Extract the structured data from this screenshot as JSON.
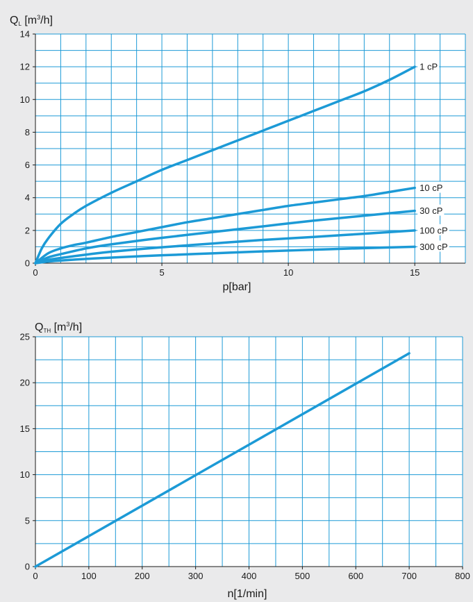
{
  "colors": {
    "line": "#1c9ad6",
    "grid": "#1c9ad6",
    "plot_bg": "#ffffff",
    "page_bg": "#eaeaeb"
  },
  "chart_data": [
    {
      "type": "line",
      "ylabel": {
        "symbol": "Q",
        "subscript": "L",
        "unit_pre": " [m",
        "unit_sup": "3",
        "unit_post": "/h]"
      },
      "xlabel": "p[bar]",
      "xlim": [
        0,
        17
      ],
      "ylim": [
        0,
        14
      ],
      "x_ticks": [
        0,
        5,
        10,
        15
      ],
      "y_ticks": [
        0,
        2,
        4,
        6,
        8,
        10,
        12,
        14
      ],
      "grid": true,
      "series": [
        {
          "name": "1 cP",
          "x": [
            0,
            0.25,
            0.5,
            1,
            1.5,
            2,
            3,
            4,
            5,
            6,
            7,
            8,
            9,
            10,
            11,
            12,
            13,
            14,
            15
          ],
          "values": [
            0,
            0.9,
            1.5,
            2.4,
            3.0,
            3.5,
            4.3,
            5.0,
            5.7,
            6.3,
            6.9,
            7.5,
            8.1,
            8.7,
            9.3,
            9.9,
            10.5,
            11.2,
            12.0
          ]
        },
        {
          "name": "10 cP",
          "x": [
            0,
            0.5,
            1,
            1.5,
            2,
            3,
            4,
            5,
            6,
            7,
            8,
            9,
            10,
            11,
            12,
            13,
            14,
            15
          ],
          "values": [
            0,
            0.6,
            0.9,
            1.1,
            1.25,
            1.6,
            1.9,
            2.2,
            2.5,
            2.75,
            3.0,
            3.25,
            3.5,
            3.7,
            3.9,
            4.1,
            4.35,
            4.6
          ]
        },
        {
          "name": "30 cP",
          "x": [
            0,
            0.5,
            1,
            2,
            3,
            5,
            7,
            9,
            11,
            13,
            15
          ],
          "values": [
            0,
            0.35,
            0.55,
            0.9,
            1.15,
            1.55,
            1.9,
            2.25,
            2.6,
            2.9,
            3.2
          ]
        },
        {
          "name": "100 cP",
          "x": [
            0,
            0.5,
            1,
            2,
            3,
            5,
            7,
            9,
            11,
            13,
            15
          ],
          "values": [
            0,
            0.2,
            0.32,
            0.52,
            0.7,
            0.97,
            1.2,
            1.42,
            1.6,
            1.8,
            2.0
          ]
        },
        {
          "name": "300 cP",
          "x": [
            0,
            0.5,
            1,
            2,
            3,
            5,
            7,
            9,
            11,
            13,
            15
          ],
          "values": [
            0,
            0.1,
            0.16,
            0.26,
            0.34,
            0.48,
            0.6,
            0.72,
            0.82,
            0.92,
            1.0
          ]
        }
      ]
    },
    {
      "type": "line",
      "ylabel": {
        "symbol": "Q",
        "subscript": "TH",
        "unit_pre": " [m",
        "unit_sup": "3",
        "unit_post": "/h]"
      },
      "xlabel": "n[1/min]",
      "xlim": [
        0,
        800
      ],
      "ylim": [
        0,
        25
      ],
      "x_ticks": [
        0,
        100,
        200,
        300,
        400,
        500,
        600,
        700,
        800
      ],
      "y_ticks": [
        0,
        5,
        10,
        15,
        20,
        25
      ],
      "grid": true,
      "series": [
        {
          "x": [
            0,
            700
          ],
          "values": [
            0,
            23.2
          ]
        }
      ]
    }
  ]
}
